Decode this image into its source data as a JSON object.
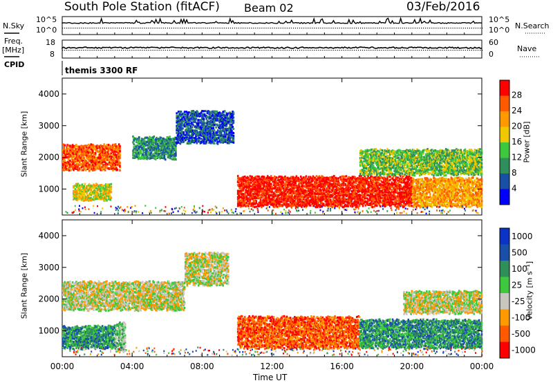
{
  "header": {
    "station": "South Pole Station (fitACF)",
    "beam": "Beam 02",
    "date": "03/Feb/2016"
  },
  "small_panels": {
    "nsky_label": "N.Sky",
    "nsearch_label": "N.Search",
    "freq_label": "Freq.",
    "freq_unit": "[MHz]",
    "nave_label": "Nave",
    "cpid_label": "CPID",
    "cpid_text": "themis 3300 RF",
    "nsky_ticks": [
      "10^5",
      "10^0"
    ],
    "nsearch_ticks": [
      "10^5",
      "10^0"
    ],
    "freq_ticks": [
      "18",
      "8"
    ],
    "nave_ticks": [
      "60",
      "0"
    ]
  },
  "colors": {
    "power": [
      "#0000ff",
      "#1a4fa8",
      "#2f8f5a",
      "#3ec83e",
      "#f0c800",
      "#ff9900",
      "#ff5a00",
      "#ff0000"
    ],
    "velocity": [
      "#ff0000",
      "#ff5a00",
      "#ff9900",
      "#c9c6c0",
      "#3ec83e",
      "#2f8f5a",
      "#1a4fa8",
      "#0b33c8"
    ]
  },
  "chart_data": [
    {
      "type": "heatmap",
      "panel": "power",
      "xlabel": "",
      "ylabel": "Slant Range [km]",
      "x_ticks": [
        "00:00",
        "04:00",
        "08:00",
        "12:00",
        "16:00",
        "20:00",
        "00:00"
      ],
      "y_ticks": [
        "1000",
        "2000",
        "3000",
        "4000"
      ],
      "ylim": [
        180,
        4500
      ],
      "colorbar": {
        "label": "Power [dB]",
        "ticks": [
          "28",
          "24",
          "20",
          "16",
          "12",
          "8",
          "4"
        ]
      },
      "regions": [
        {
          "t0": 0.0,
          "t1": 3.3,
          "r0": 1650,
          "r1": 2450,
          "level": 6
        },
        {
          "t0": 0.6,
          "t1": 2.8,
          "r0": 700,
          "r1": 1200,
          "level": 4
        },
        {
          "t0": 4.0,
          "t1": 6.5,
          "r0": 2000,
          "r1": 2700,
          "level": 2
        },
        {
          "t0": 6.5,
          "t1": 9.8,
          "r0": 2500,
          "r1": 3500,
          "level": 1
        },
        {
          "t0": 10.0,
          "t1": 20.0,
          "r0": 500,
          "r1": 1450,
          "level": 7
        },
        {
          "t0": 17.0,
          "t1": 24.0,
          "r0": 1500,
          "r1": 2300,
          "level": 3
        },
        {
          "t0": 20.0,
          "t1": 24.0,
          "r0": 500,
          "r1": 1400,
          "level": 5
        }
      ]
    },
    {
      "type": "heatmap",
      "panel": "velocity",
      "xlabel": "Time UT",
      "ylabel": "Slant Range [km]",
      "x_ticks": [
        "00:00",
        "04:00",
        "08:00",
        "12:00",
        "16:00",
        "20:00",
        "00:00"
      ],
      "y_ticks": [
        "1000",
        "2000",
        "3000",
        "4000"
      ],
      "ylim": [
        180,
        4500
      ],
      "colorbar": {
        "label": "Velocity [m s⁻¹]",
        "ticks": [
          "1000",
          "500",
          "100",
          "25",
          "-25",
          "-100",
          "-500",
          "-1000"
        ]
      },
      "regions": [
        {
          "t0": 0.0,
          "t1": 7.0,
          "r0": 1700,
          "r1": 2600,
          "level": 3
        },
        {
          "t0": 0.0,
          "t1": 3.0,
          "r0": 500,
          "r1": 1200,
          "level": 5
        },
        {
          "t0": 3.0,
          "t1": 3.6,
          "r0": 400,
          "r1": 1300,
          "level": 4
        },
        {
          "t0": 7.0,
          "t1": 9.5,
          "r0": 2500,
          "r1": 3500,
          "level": 3
        },
        {
          "t0": 10.0,
          "t1": 17.0,
          "r0": 500,
          "r1": 1500,
          "level": 1
        },
        {
          "t0": 17.0,
          "t1": 24.0,
          "r0": 500,
          "r1": 1400,
          "level": 5
        },
        {
          "t0": 19.5,
          "t1": 24.0,
          "r0": 1600,
          "r1": 2300,
          "level": 3
        }
      ]
    }
  ]
}
